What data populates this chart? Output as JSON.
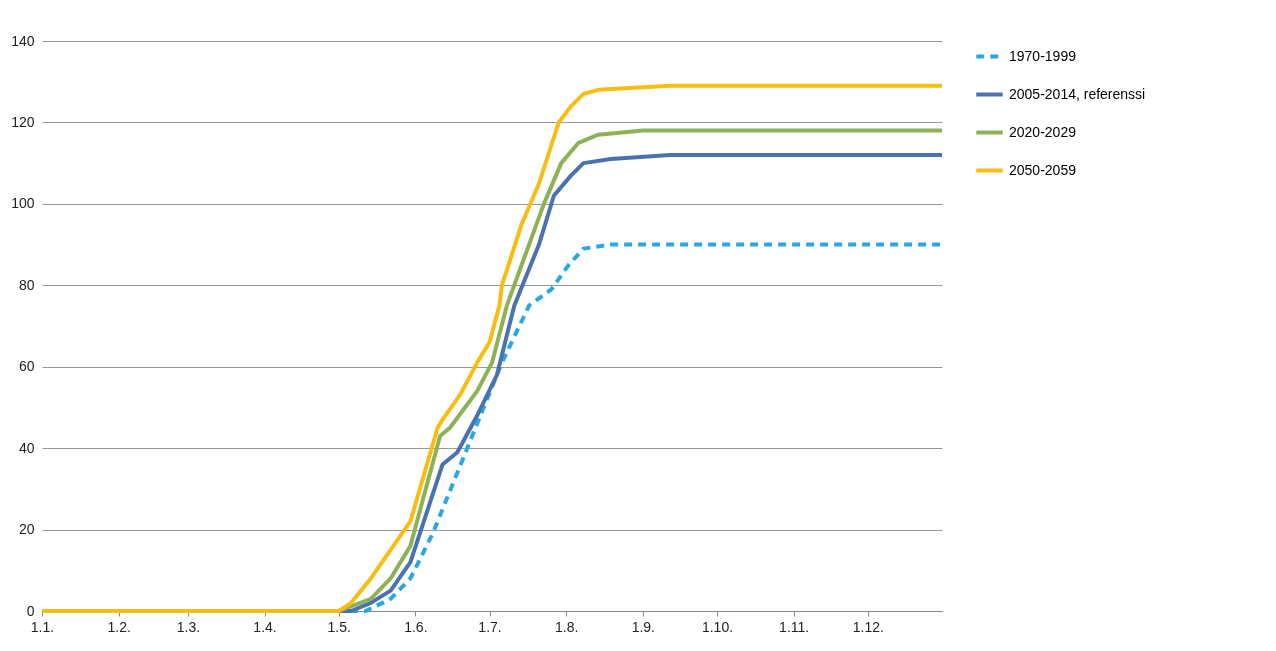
{
  "chart_data": {
    "type": "line",
    "xlim": [
      "--01-01",
      "--12-31"
    ],
    "xticks": [
      {
        "value": "--01-01",
        "label": "1.1."
      },
      {
        "value": "--02-01",
        "label": "1.2."
      },
      {
        "value": "--03-01",
        "label": "1.3."
      },
      {
        "value": "--04-01",
        "label": "1.4."
      },
      {
        "value": "--05-01",
        "label": "1.5."
      },
      {
        "value": "--06-01",
        "label": "1.6."
      },
      {
        "value": "--07-01",
        "label": "1.7."
      },
      {
        "value": "--08-01",
        "label": "1.8."
      },
      {
        "value": "--09-01",
        "label": "1.9."
      },
      {
        "value": "--10-01",
        "label": "1.10."
      },
      {
        "value": "--11-01",
        "label": "1.11."
      },
      {
        "value": "--12-01",
        "label": "1.12."
      }
    ],
    "ylim": [
      0,
      140
    ],
    "yticks": [
      0,
      20,
      40,
      60,
      80,
      100,
      120,
      140
    ],
    "grid": "y",
    "legend": "right",
    "series": [
      {
        "name": "1970-1999",
        "color": "#29a8e0",
        "line_style": "dashed",
        "x": [
          "--01-01",
          "--05-12",
          "--05-22",
          "--05-30",
          "--06-08",
          "--06-16",
          "--06-26",
          "--07-06",
          "--07-17",
          "--07-26",
          "--08-02",
          "--08-08",
          "--08-19",
          "--09-12",
          "--12-31"
        ],
        "values": [
          0,
          0,
          3,
          8,
          19,
          31,
          46,
          61,
          75,
          79,
          85,
          89,
          90,
          90,
          90
        ]
      },
      {
        "name": "2005-2014, referenssi",
        "color": "#4a72b0",
        "line_style": "solid",
        "x": [
          "--01-01",
          "--05-06",
          "--05-14",
          "--05-22",
          "--05-30",
          "--06-12",
          "--06-18",
          "--06-26",
          "--07-04",
          "--07-11",
          "--07-21",
          "--07-27",
          "--08-03",
          "--08-08",
          "--08-19",
          "--09-12",
          "--12-31"
        ],
        "values": [
          0,
          0,
          2,
          5,
          12,
          36,
          39,
          48,
          58,
          75,
          90,
          102,
          107,
          110,
          111,
          112,
          112
        ]
      },
      {
        "name": "2020-2029",
        "color": "#8db255",
        "line_style": "solid",
        "x": [
          "--01-01",
          "--05-01",
          "--05-14",
          "--05-22",
          "--05-30",
          "--06-11",
          "--06-15",
          "--06-26",
          "--07-02",
          "--07-08",
          "--07-23",
          "--07-30",
          "--08-06",
          "--08-14",
          "--09-01",
          "--12-31"
        ],
        "values": [
          0,
          0,
          3,
          8,
          16,
          43,
          45,
          54,
          61,
          75,
          100,
          110,
          115,
          117,
          118,
          118
        ]
      },
      {
        "name": "2050-2059",
        "color": "#f9bd11",
        "line_style": "solid",
        "x": [
          "--01-01",
          "--05-01",
          "--05-06",
          "--05-14",
          "--05-22",
          "--05-30",
          "--06-10",
          "--06-12",
          "--06-19",
          "--06-26",
          "--07-01",
          "--07-05",
          "--07-06",
          "--07-14",
          "--07-21",
          "--07-29",
          "--08-03",
          "--08-08",
          "--08-14",
          "--09-12",
          "--12-31"
        ],
        "values": [
          0,
          0,
          2,
          8,
          15,
          22,
          45,
          47,
          53,
          61,
          66,
          75,
          80,
          95,
          105,
          120,
          124,
          127,
          128,
          129,
          129
        ]
      }
    ]
  }
}
